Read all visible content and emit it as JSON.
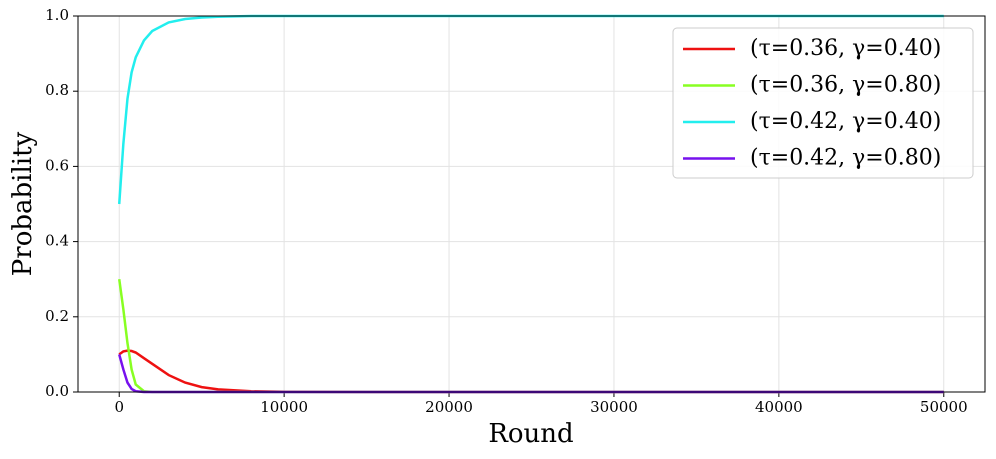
{
  "chart_data": {
    "type": "line",
    "x_label": "Round",
    "y_label": "Probability",
    "x": [
      0,
      250,
      500,
      750,
      1000,
      1500,
      2000,
      3000,
      4000,
      5000,
      6000,
      8000,
      10000,
      15000,
      20000,
      30000,
      40000,
      50000
    ],
    "series": [
      {
        "name": "(τ=0.36, γ=0.40)",
        "color": "#ee1111",
        "values": [
          0.1,
          0.108,
          0.11,
          0.109,
          0.105,
          0.09,
          0.075,
          0.045,
          0.025,
          0.013,
          0.007,
          0.002,
          0.0005,
          0,
          0,
          0,
          0,
          0
        ]
      },
      {
        "name": "(τ=0.36, γ=0.80)",
        "color": "#88ff22",
        "values": [
          0.3,
          0.22,
          0.13,
          0.06,
          0.02,
          0.002,
          0,
          0,
          0,
          0,
          0,
          0,
          0,
          0,
          0,
          0,
          0,
          0
        ]
      },
      {
        "name": "(τ=0.42, γ=0.40)",
        "color": "#22eeee",
        "values": [
          0.5,
          0.66,
          0.78,
          0.85,
          0.89,
          0.935,
          0.96,
          0.983,
          0.992,
          0.996,
          0.998,
          1.0,
          1.0,
          1.0,
          1.0,
          1.0,
          1.0,
          1.0
        ]
      },
      {
        "name": "(τ=0.42, γ=0.80)",
        "color": "#7711ee",
        "values": [
          0.1,
          0.06,
          0.025,
          0.008,
          0.002,
          0,
          0,
          0,
          0,
          0,
          0,
          0,
          0,
          0,
          0,
          0,
          0,
          0
        ]
      }
    ],
    "xlim": [
      -2500,
      52500
    ],
    "xticks": [
      0,
      10000,
      20000,
      30000,
      40000,
      50000
    ],
    "ylim": [
      0,
      1
    ],
    "yticks": [
      {
        "value": 0,
        "label": "0.0"
      },
      0.2,
      0.4,
      0.6,
      0.8,
      {
        "value": 1,
        "label": "1.0"
      }
    ],
    "grid": true,
    "legend": "upper right"
  }
}
